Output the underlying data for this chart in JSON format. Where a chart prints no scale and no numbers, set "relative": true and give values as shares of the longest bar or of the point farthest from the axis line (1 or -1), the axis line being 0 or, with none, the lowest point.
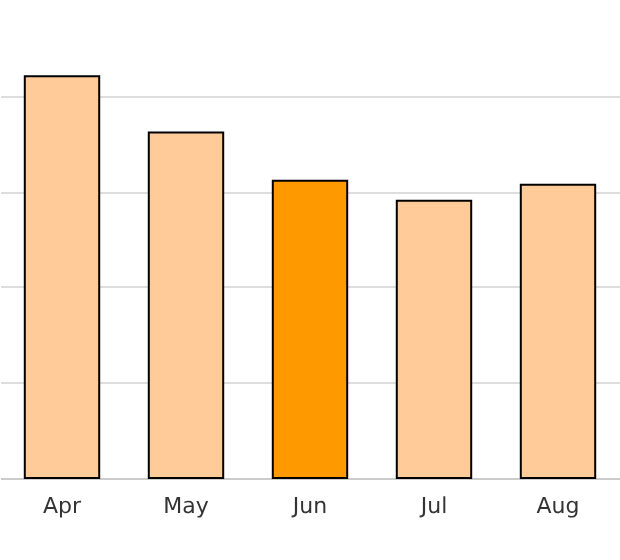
{
  "chart_data": {
    "type": "bar",
    "relative": true,
    "grid": "y",
    "categories": [
      "Apr",
      "May",
      "Jun",
      "Jul",
      "Aug"
    ],
    "values": [
      1,
      0.86,
      0.74,
      0.69,
      0.73
    ],
    "colors": [
      "#ffcc99",
      "#ffcc99",
      "#ff9900",
      "#ffcc99",
      "#ffcc99"
    ]
  }
}
